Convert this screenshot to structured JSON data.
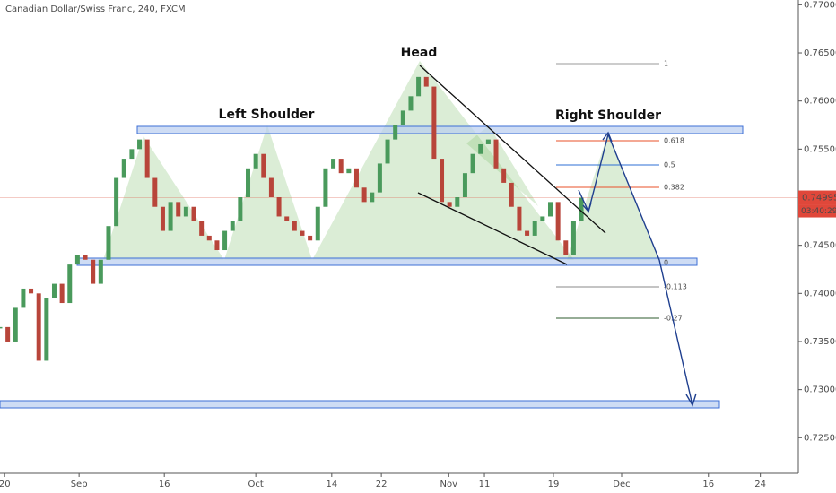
{
  "chart_data": {
    "type": "candlestick",
    "title": "Canadian Dollar/Swiss Franc, 240, FXCM",
    "x": [
      0,
      1,
      2,
      3,
      4,
      5,
      6,
      7,
      8,
      9,
      10,
      11,
      12,
      13,
      14,
      15,
      16,
      17,
      18,
      19,
      20,
      21,
      22,
      23,
      24,
      25,
      26,
      27,
      28,
      29,
      30,
      31,
      32,
      33,
      34,
      35,
      36,
      37,
      38,
      39,
      40,
      41,
      42,
      43,
      44,
      45,
      46,
      47,
      48,
      49,
      50,
      51,
      52,
      53,
      54,
      55,
      56,
      57,
      58,
      59,
      60,
      61,
      62,
      63,
      64,
      65,
      66,
      67,
      68,
      69,
      70,
      71,
      72,
      73,
      74,
      75
    ],
    "values": [
      0.7365,
      0.735,
      0.7385,
      0.7405,
      0.74,
      0.733,
      0.7395,
      0.741,
      0.739,
      0.743,
      0.744,
      0.7435,
      0.741,
      0.7435,
      0.747,
      0.752,
      0.754,
      0.755,
      0.756,
      0.752,
      0.749,
      0.7465,
      0.7495,
      0.748,
      0.749,
      0.7475,
      0.746,
      0.7455,
      0.7445,
      0.7465,
      0.7475,
      0.75,
      0.753,
      0.7545,
      0.752,
      0.75,
      0.748,
      0.7475,
      0.7465,
      0.746,
      0.7455,
      0.749,
      0.753,
      0.754,
      0.7525,
      0.753,
      0.751,
      0.7495,
      0.7505,
      0.7535,
      0.756,
      0.7575,
      0.759,
      0.7605,
      0.7625,
      0.7615,
      0.754,
      0.7495,
      0.749,
      0.75,
      0.7525,
      0.7545,
      0.7555,
      0.756,
      0.753,
      0.7515,
      0.749,
      0.7465,
      0.746,
      0.7475,
      0.748,
      0.7495,
      0.7455,
      0.744,
      0.7475,
      0.74995
    ],
    "up_color": "#4a9a5c",
    "down_color": "#b8453a",
    "xlim": [
      0,
      103
    ],
    "ylim": [
      0.7213,
      0.7705
    ],
    "xticks": [
      {
        "value": 0.6,
        "label": "20"
      },
      {
        "value": 10.2,
        "label": "Sep"
      },
      {
        "value": 21.2,
        "label": "16"
      },
      {
        "value": 33,
        "label": "Oct"
      },
      {
        "value": 42.8,
        "label": "14"
      },
      {
        "value": 49.2,
        "label": "22"
      },
      {
        "value": 57.9,
        "label": "Nov"
      },
      {
        "value": 62.5,
        "label": "11"
      },
      {
        "value": 71.4,
        "label": "19"
      },
      {
        "value": 80.2,
        "label": "Dec"
      },
      {
        "value": 91.4,
        "label": "16"
      },
      {
        "value": 98.1,
        "label": "24"
      }
    ],
    "yticks": [
      {
        "value": 0.77,
        "label": "0.77000"
      },
      {
        "value": 0.765,
        "label": "0.76500"
      },
      {
        "value": 0.76,
        "label": "0.76000"
      },
      {
        "value": 0.755,
        "label": "0.75500"
      },
      {
        "value": 0.75,
        "label": "0.75000"
      },
      {
        "value": 0.745,
        "label": "0.74500"
      },
      {
        "value": 0.74,
        "label": "0.74000"
      },
      {
        "value": 0.735,
        "label": "0.73500"
      },
      {
        "value": 0.73,
        "label": "0.73000"
      },
      {
        "value": 0.725,
        "label": "0.72500"
      }
    ],
    "grid": false,
    "last_price": 0.74995,
    "countdown": "03:40:29",
    "annotations": {
      "head": "Head",
      "left_shoulder": "Left Shoulder",
      "right_shoulder": "Right Shoulder"
    },
    "fib_levels": [
      1,
      0.618,
      0.5,
      0.382,
      0,
      -0.113,
      -0.27
    ]
  }
}
